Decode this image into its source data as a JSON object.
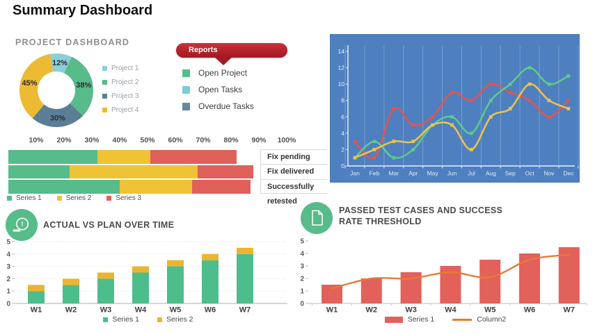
{
  "page_title": "Summary Dashboard",
  "reports_panel": {
    "ribbon_label": "Reports",
    "items": [
      {
        "label": "Open Project",
        "color": "#57bb8a"
      },
      {
        "label": "Open Tasks",
        "color": "#7fccd4"
      },
      {
        "label": "Overdue Tasks",
        "color": "#67879c"
      }
    ]
  },
  "icons": {
    "actual_vs_plan": "timer-icon",
    "passed_tests": "document-icon"
  },
  "chart_data": [
    {
      "id": "project_donut",
      "type": "pie",
      "donut": true,
      "title": "PROJECT DASHBOARD",
      "labels": [
        "Project 1",
        "Project 2",
        "Project 3",
        "Project 4"
      ],
      "values": [
        12,
        38,
        30,
        45
      ],
      "value_labels": [
        "12%",
        "38%",
        "30%",
        "45%"
      ],
      "colors": [
        "#8ccfd8",
        "#57bb8a",
        "#5b7e96",
        "#ecbb33"
      ],
      "start_angle_deg": -10,
      "legend_position": "right"
    },
    {
      "id": "monthly_trends",
      "type": "line",
      "x": [
        "Jan",
        "Feb",
        "Mar",
        "Apr",
        "May",
        "Jun",
        "Jul",
        "Aug",
        "Sep",
        "Oct",
        "Nov",
        "Dec"
      ],
      "series": [
        {
          "name": "red-series",
          "color": "#e2544f",
          "values": [
            3,
            1,
            7,
            5,
            6,
            9,
            8,
            10,
            9,
            8,
            6,
            8
          ]
        },
        {
          "name": "green-series",
          "color": "#5dc98e",
          "values": [
            1,
            3,
            1,
            2,
            5,
            6,
            4,
            8,
            10,
            12,
            10,
            11
          ]
        },
        {
          "name": "yellow-series",
          "color": "#e9c34c",
          "values": [
            1,
            2,
            3,
            3,
            5,
            5,
            2,
            6,
            7,
            10,
            8,
            7
          ]
        }
      ],
      "ylim": [
        0,
        14
      ],
      "ytick_step": 2,
      "background": "#4e7fbf",
      "grid": "vertical",
      "legend_position": "none"
    },
    {
      "id": "fix_status",
      "type": "bar",
      "orientation": "horizontal-stacked",
      "categories": [
        "Fix pending",
        "Fix delivered",
        "Successfully retested"
      ],
      "series": [
        {
          "name": "Series 1",
          "color": "#57bb8a",
          "values": [
            32,
            22,
            40
          ]
        },
        {
          "name": "Series 2",
          "color": "#eec335",
          "values": [
            19,
            46,
            26
          ]
        },
        {
          "name": "Series 3",
          "color": "#e0605a",
          "values": [
            31,
            20,
            21
          ]
        }
      ],
      "xticks": [
        "10%",
        "20%",
        "30%",
        "40%",
        "50%",
        "60%",
        "70%",
        "80%",
        "90%",
        "100%"
      ],
      "xlim": [
        0,
        100
      ],
      "legend_position": "bottom-left"
    },
    {
      "id": "actual_vs_plan",
      "type": "bar",
      "orientation": "vertical-stacked",
      "title": "ACTUAL VS PLAN OVER TIME",
      "categories": [
        "W1",
        "W2",
        "W3",
        "W4",
        "W5",
        "W6",
        "W7"
      ],
      "series": [
        {
          "name": "Series 1",
          "color": "#4ebd8c",
          "values": [
            1,
            1.5,
            2,
            2.5,
            3,
            3.5,
            4
          ]
        },
        {
          "name": "Series 2",
          "color": "#ecb431",
          "values": [
            0.5,
            0.5,
            0.5,
            0.5,
            0.5,
            0.5,
            0.5
          ]
        }
      ],
      "ylim": [
        0,
        5
      ],
      "ytick_step": 1,
      "grid": "horizontal",
      "legend_position": "bottom-center"
    },
    {
      "id": "passed_tests",
      "type": "bar+line",
      "title": "PASSED TEST CASES AND SUCCESS RATE THRESHOLD",
      "categories": [
        "W1",
        "W2",
        "W3",
        "W4",
        "W5",
        "W6",
        "W7"
      ],
      "bar_series": {
        "name": "Series 1",
        "color": "#e2615b",
        "values": [
          1.5,
          2,
          2.5,
          3,
          3.5,
          4,
          4.5
        ]
      },
      "line_series": {
        "name": "Column2",
        "color": "#e87a33",
        "values": [
          1.2,
          2,
          2,
          2.5,
          2.1,
          3.5,
          3.9
        ]
      },
      "ylim": [
        0,
        5
      ],
      "ytick_step": 1,
      "legend_position": "bottom-center"
    }
  ]
}
